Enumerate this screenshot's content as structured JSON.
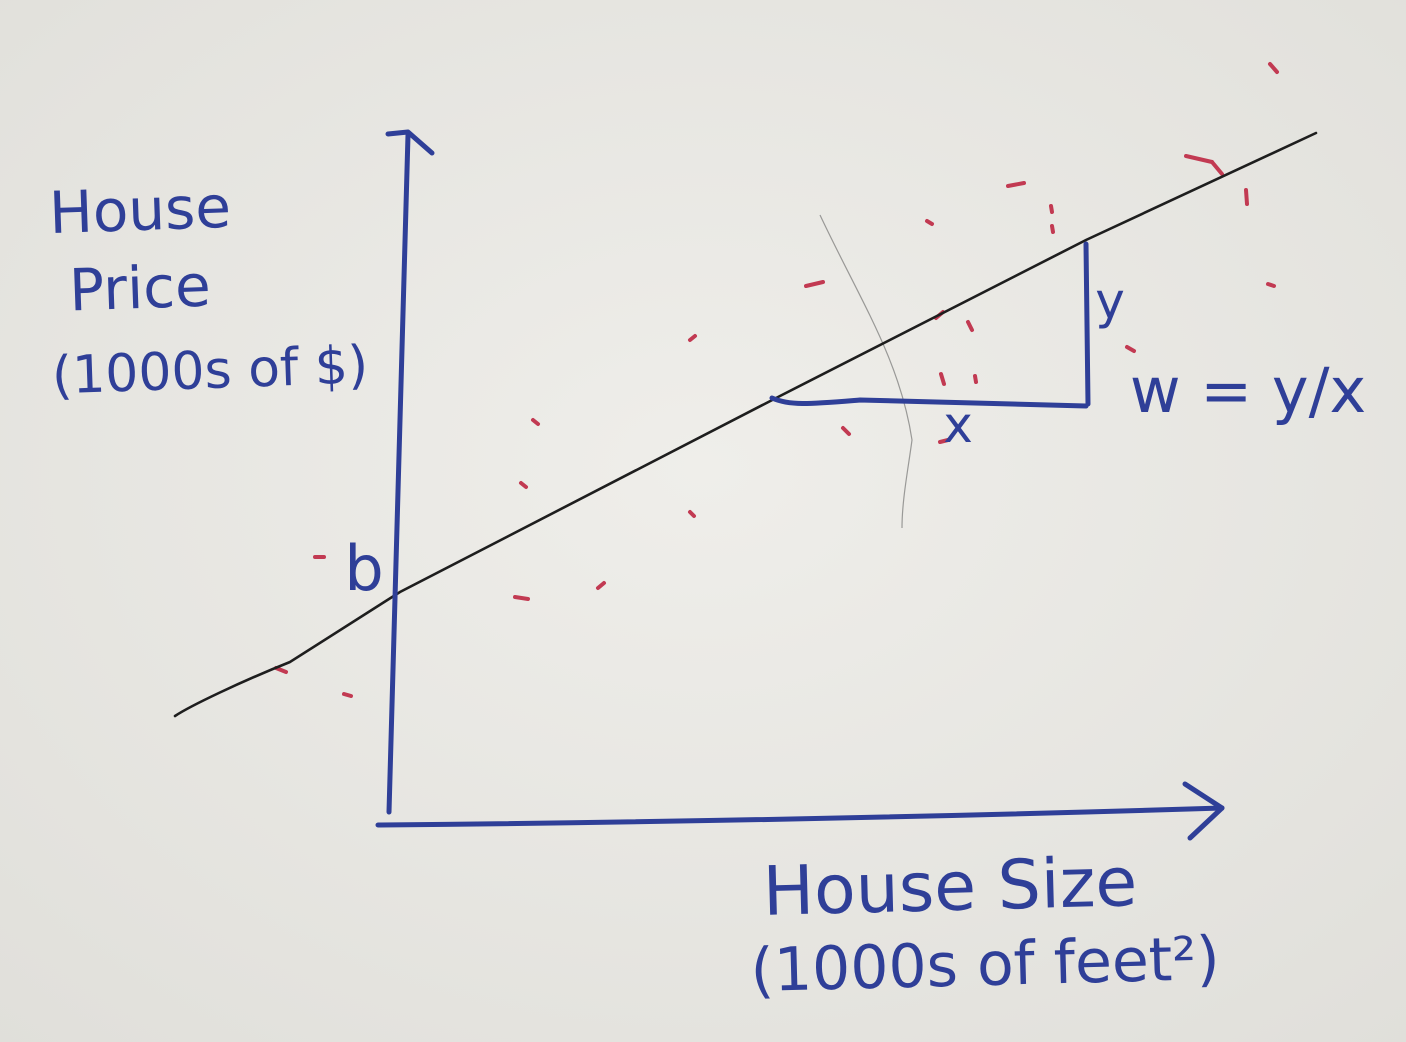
{
  "diagram": {
    "y_axis_label_lines": [
      "House",
      "Price",
      "(1000s of $)"
    ],
    "x_axis_label_lines": [
      "House Size",
      "(1000s of feet²)"
    ],
    "intercept_label": "b",
    "rise_label": "y",
    "run_label": "x",
    "slope_formula": "w = y/x"
  },
  "colors": {
    "paper": "#e9e8e3",
    "ink_blue": "#2f3f98",
    "ink_black": "#1e1e1e",
    "ink_red": "#c23a52"
  }
}
